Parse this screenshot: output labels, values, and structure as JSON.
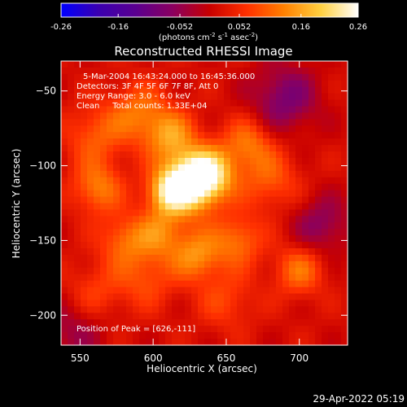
{
  "colorbar": {
    "ticks": [
      "-0.26",
      "-0.16",
      "-0.052",
      "0.052",
      "0.16",
      "0.26"
    ],
    "unit_parts": [
      "(photons cm",
      "-2",
      " s",
      "-1",
      " asec",
      "-2",
      ")"
    ],
    "colors": [
      "#0000ff",
      "#3a00b0",
      "#5a0090",
      "#8a0060",
      "#c80000",
      "#ff3000",
      "#ff8000",
      "#ffd040",
      "#ffffff"
    ]
  },
  "chart_data": {
    "type": "heatmap",
    "title": "Reconstructed RHESSI Image",
    "xlabel": "Heliocentric X (arcsec)",
    "ylabel": "Heliocentric Y (arcsec)",
    "xlim": [
      537,
      733
    ],
    "ylim": [
      -220,
      -30
    ],
    "x_ticks": [
      550,
      600,
      650,
      700
    ],
    "y_ticks": [
      -50,
      -100,
      -150,
      -200
    ],
    "zlim": [
      -0.26,
      0.26
    ],
    "peak": [
      626,
      -111
    ],
    "annotations": [
      "5-Mar-2004 16:43:24.000 to 16:45:36.000",
      "Detectors: 3F 4F 5F 6F 7F 8F, Att 0",
      "Energy Range: 3.0 - 6.0 keV",
      "Clean     Total counts: 1.33E+04"
    ],
    "peak_label": "Position of Peak = [626,-111]",
    "sources": [
      {
        "x": 626,
        "y": -111,
        "amp": 0.26,
        "w": 14
      },
      {
        "x": 610,
        "y": -118,
        "amp": 0.14,
        "w": 10
      },
      {
        "x": 640,
        "y": -105,
        "amp": 0.13,
        "w": 12
      },
      {
        "x": 612,
        "y": -80,
        "amp": 0.12,
        "w": 12
      },
      {
        "x": 590,
        "y": -65,
        "amp": 0.1,
        "w": 14
      },
      {
        "x": 562,
        "y": -115,
        "amp": 0.11,
        "w": 12
      },
      {
        "x": 560,
        "y": -80,
        "amp": 0.08,
        "w": 14
      },
      {
        "x": 580,
        "y": -150,
        "amp": 0.09,
        "w": 12
      },
      {
        "x": 605,
        "y": -145,
        "amp": 0.1,
        "w": 12
      },
      {
        "x": 630,
        "y": -160,
        "amp": 0.12,
        "w": 12
      },
      {
        "x": 658,
        "y": -150,
        "amp": 0.1,
        "w": 12
      },
      {
        "x": 665,
        "y": -85,
        "amp": 0.1,
        "w": 12
      },
      {
        "x": 680,
        "y": -110,
        "amp": 0.08,
        "w": 14
      },
      {
        "x": 700,
        "y": -170,
        "amp": 0.1,
        "w": 12
      },
      {
        "x": 595,
        "y": -175,
        "amp": 0.07,
        "w": 14
      },
      {
        "x": 560,
        "y": -185,
        "amp": 0.06,
        "w": 14
      },
      {
        "x": 650,
        "y": -190,
        "amp": 0.06,
        "w": 14
      },
      {
        "x": 690,
        "y": -55,
        "amp": -0.1,
        "w": 16
      },
      {
        "x": 715,
        "y": -140,
        "amp": -0.08,
        "w": 14
      },
      {
        "x": 545,
        "y": -210,
        "amp": -0.06,
        "w": 16
      }
    ]
  },
  "footer": {
    "timestamp": "29-Apr-2022 05:19"
  }
}
